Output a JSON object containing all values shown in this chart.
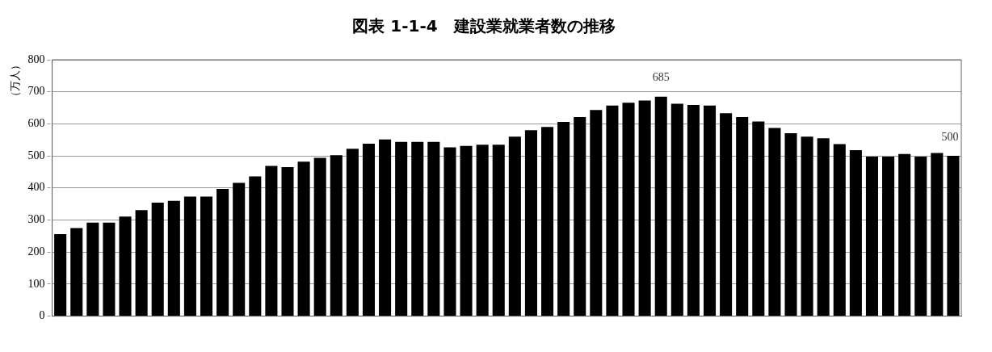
{
  "chart_data": {
    "type": "bar",
    "title": "図表 1-1-4　建設業就業者数の推移",
    "ylabel": "（万人）",
    "categories": [
      null,
      null,
      null,
      null,
      null,
      null,
      null,
      null,
      null,
      null,
      null,
      null,
      null,
      null,
      null,
      null,
      null,
      null,
      null,
      null,
      null,
      null,
      null,
      null,
      null,
      null,
      null,
      null,
      null,
      null,
      null,
      null,
      null,
      null,
      null,
      null,
      null,
      null,
      null,
      null,
      null,
      null,
      null,
      null,
      null,
      null,
      null,
      null,
      null,
      null,
      null,
      null,
      null,
      null,
      null,
      null
    ],
    "values": [
      256,
      275,
      292,
      292,
      311,
      331,
      354,
      360,
      373,
      373,
      397,
      416,
      436,
      469,
      465,
      482,
      494,
      502,
      522,
      538,
      551,
      544,
      544,
      544,
      527,
      531,
      535,
      535,
      560,
      580,
      590,
      606,
      621,
      643,
      657,
      666,
      673,
      685,
      663,
      659,
      657,
      633,
      621,
      607,
      587,
      571,
      560,
      555,
      537,
      518,
      498,
      498,
      506,
      498,
      509,
      500
    ],
    "value_labels": [
      null,
      null,
      null,
      null,
      null,
      null,
      null,
      null,
      null,
      null,
      null,
      null,
      null,
      null,
      null,
      null,
      null,
      null,
      null,
      null,
      null,
      null,
      null,
      null,
      null,
      null,
      null,
      null,
      null,
      null,
      null,
      null,
      null,
      null,
      null,
      null,
      null,
      "685",
      null,
      null,
      null,
      null,
      null,
      null,
      null,
      null,
      null,
      null,
      null,
      null,
      null,
      null,
      null,
      null,
      null,
      "500"
    ],
    "color": "#000000",
    "ylim": [
      0,
      800
    ],
    "yticks": [
      0,
      100,
      200,
      300,
      400,
      500,
      600,
      700,
      800
    ],
    "grid": "y"
  }
}
